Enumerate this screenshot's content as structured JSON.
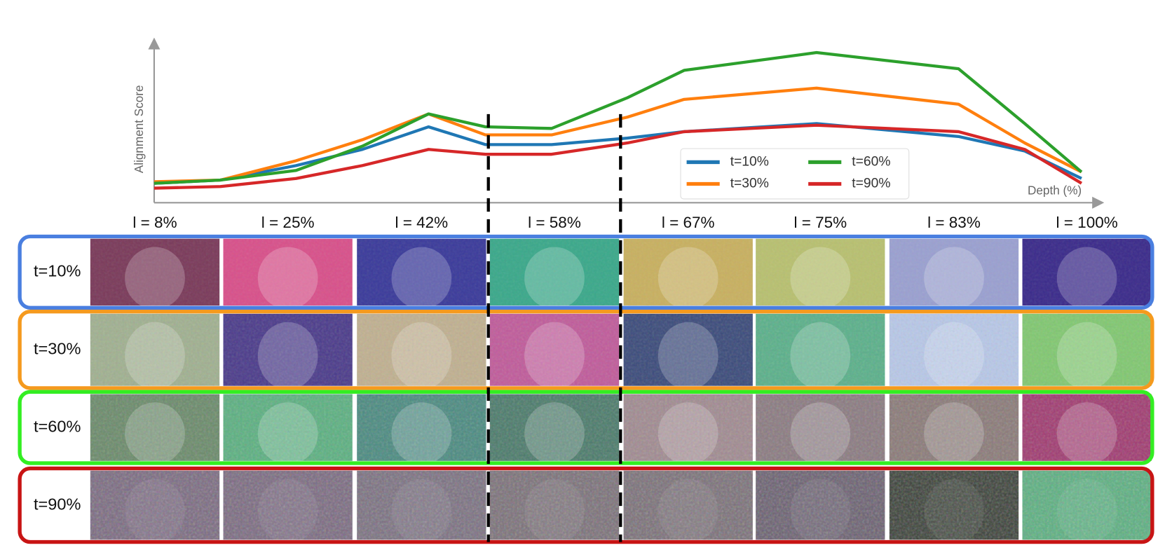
{
  "chart_data": {
    "type": "line",
    "y_label": "Alignment Score",
    "x_label": "Depth (%)",
    "xlim": [
      0,
      100
    ],
    "ylim": [
      0,
      100
    ],
    "x": [
      0,
      7,
      15,
      22,
      29,
      35,
      42,
      50,
      56,
      70,
      85,
      92,
      98
    ],
    "legend": "lower right",
    "series": [
      {
        "name": "t=10%",
        "color": "#1f77b4",
        "values": [
          12,
          14,
          23,
          33,
          47,
          36,
          36,
          40,
          44,
          49,
          41,
          32,
          15
        ]
      },
      {
        "name": "t=30%",
        "color": "#ff7f0e",
        "values": [
          13,
          14,
          26,
          39,
          55,
          42,
          42,
          53,
          64,
          71,
          61,
          37,
          19
        ]
      },
      {
        "name": "t=60%",
        "color": "#2ca02c",
        "values": [
          12,
          14,
          20,
          35,
          55,
          47,
          46,
          65,
          82,
          93,
          83,
          49,
          19
        ]
      },
      {
        "name": "t=90%",
        "color": "#d62728",
        "values": [
          9,
          10,
          15,
          23,
          33,
          30,
          30,
          37,
          44,
          48,
          44,
          33,
          12
        ]
      }
    ]
  },
  "grid": {
    "columns": [
      "l = 8%",
      "l = 25%",
      "l = 42%",
      "l = 58%",
      "l = 67%",
      "l = 75%",
      "l = 83%",
      "l = 100%"
    ],
    "rows": [
      {
        "label": "t=10%",
        "color": "#4a7fe0"
      },
      {
        "label": "t=30%",
        "color": "#f59a1e"
      },
      {
        "label": "t=60%",
        "color": "#33ee22"
      },
      {
        "label": "t=90%",
        "color": "#c81414"
      }
    ]
  }
}
